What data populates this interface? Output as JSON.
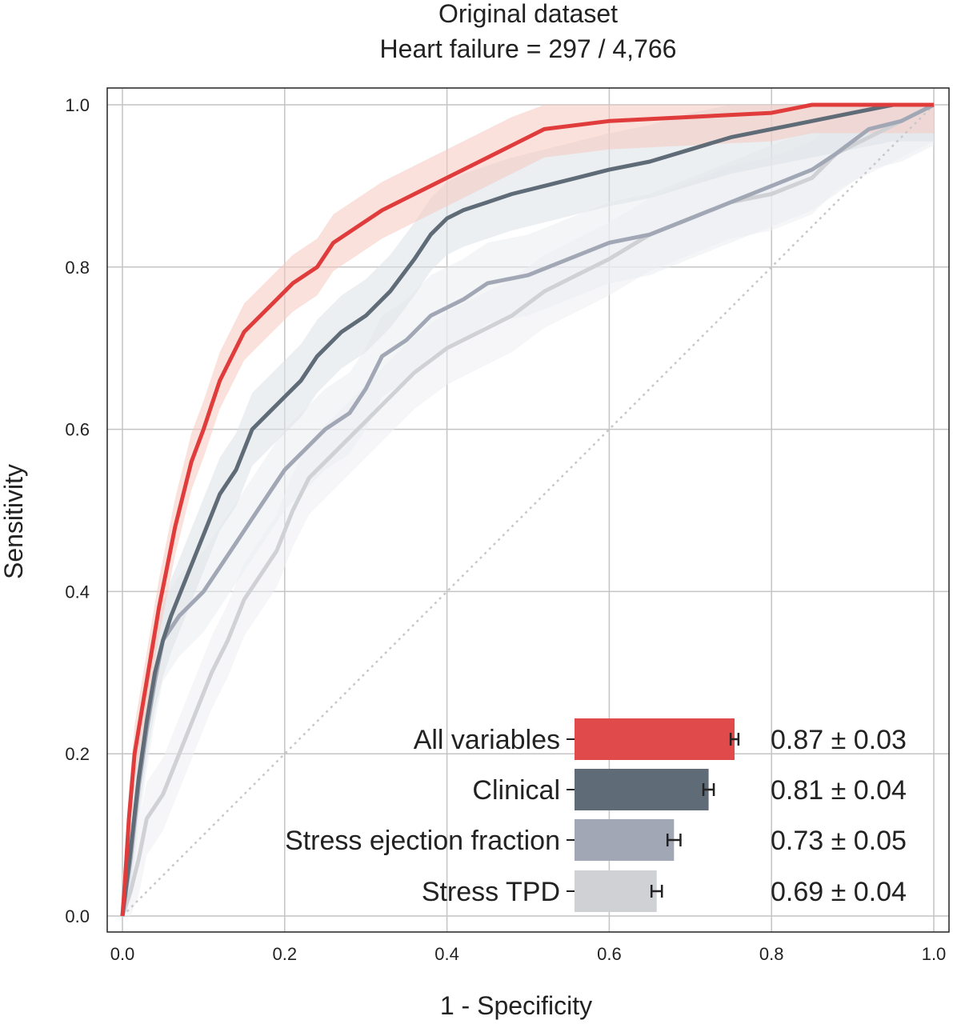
{
  "chart_data": {
    "type": "line",
    "title": "Original dataset",
    "subtitle": "Heart failure = 297 / 4,766",
    "xlabel": "1 - Specificity",
    "ylabel": "Sensitivity",
    "xlim": [
      0,
      1
    ],
    "ylim": [
      0,
      1
    ],
    "x_ticks": [
      "0.0",
      "0.2",
      "0.4",
      "0.6",
      "0.8",
      "1.0"
    ],
    "y_ticks": [
      "0.0",
      "0.2",
      "0.4",
      "0.6",
      "0.8",
      "1.0"
    ],
    "grid": true,
    "diagonal_reference": true,
    "series": [
      {
        "name": "All variables",
        "color": "#e03c3c",
        "band_color": "#f6c9c0",
        "auc_label": "0.87 ± 0.03",
        "auc": 0.87,
        "auc_err": 0.03,
        "points": [
          [
            0,
            0
          ],
          [
            0.003,
            0.04
          ],
          [
            0.008,
            0.12
          ],
          [
            0.015,
            0.2
          ],
          [
            0.025,
            0.26
          ],
          [
            0.035,
            0.32
          ],
          [
            0.045,
            0.38
          ],
          [
            0.055,
            0.43
          ],
          [
            0.065,
            0.48
          ],
          [
            0.075,
            0.52
          ],
          [
            0.085,
            0.56
          ],
          [
            0.1,
            0.6
          ],
          [
            0.11,
            0.63
          ],
          [
            0.12,
            0.66
          ],
          [
            0.135,
            0.69
          ],
          [
            0.15,
            0.72
          ],
          [
            0.17,
            0.74
          ],
          [
            0.19,
            0.76
          ],
          [
            0.21,
            0.78
          ],
          [
            0.24,
            0.8
          ],
          [
            0.26,
            0.83
          ],
          [
            0.29,
            0.85
          ],
          [
            0.32,
            0.87
          ],
          [
            0.36,
            0.89
          ],
          [
            0.4,
            0.91
          ],
          [
            0.44,
            0.93
          ],
          [
            0.48,
            0.95
          ],
          [
            0.52,
            0.97
          ],
          [
            0.6,
            0.98
          ],
          [
            0.7,
            0.985
          ],
          [
            0.8,
            0.99
          ],
          [
            0.85,
            1.0
          ],
          [
            1.0,
            1.0
          ]
        ]
      },
      {
        "name": "Clinical",
        "color": "#5f6b76",
        "band_color": "#dde2e8",
        "auc_label": "0.81 ± 0.04",
        "auc": 0.81,
        "auc_err": 0.04,
        "points": [
          [
            0,
            0
          ],
          [
            0.01,
            0.08
          ],
          [
            0.02,
            0.17
          ],
          [
            0.03,
            0.24
          ],
          [
            0.04,
            0.3
          ],
          [
            0.05,
            0.34
          ],
          [
            0.06,
            0.37
          ],
          [
            0.08,
            0.42
          ],
          [
            0.1,
            0.47
          ],
          [
            0.12,
            0.52
          ],
          [
            0.14,
            0.55
          ],
          [
            0.16,
            0.6
          ],
          [
            0.18,
            0.62
          ],
          [
            0.2,
            0.64
          ],
          [
            0.22,
            0.66
          ],
          [
            0.24,
            0.69
          ],
          [
            0.27,
            0.72
          ],
          [
            0.3,
            0.74
          ],
          [
            0.33,
            0.77
          ],
          [
            0.36,
            0.81
          ],
          [
            0.38,
            0.84
          ],
          [
            0.4,
            0.86
          ],
          [
            0.42,
            0.87
          ],
          [
            0.45,
            0.88
          ],
          [
            0.48,
            0.89
          ],
          [
            0.52,
            0.9
          ],
          [
            0.56,
            0.91
          ],
          [
            0.6,
            0.92
          ],
          [
            0.65,
            0.93
          ],
          [
            0.7,
            0.945
          ],
          [
            0.75,
            0.96
          ],
          [
            0.8,
            0.97
          ],
          [
            0.85,
            0.98
          ],
          [
            0.9,
            0.99
          ],
          [
            0.95,
            1.0
          ],
          [
            1.0,
            1.0
          ]
        ]
      },
      {
        "name": "Stress ejection fraction",
        "color": "#a1a7b4",
        "band_color": "#eaedf1",
        "auc_label": "0.73 ± 0.05",
        "auc": 0.73,
        "auc_err": 0.05,
        "points": [
          [
            0,
            0
          ],
          [
            0.01,
            0.07
          ],
          [
            0.02,
            0.16
          ],
          [
            0.03,
            0.23
          ],
          [
            0.04,
            0.29
          ],
          [
            0.05,
            0.34
          ],
          [
            0.07,
            0.37
          ],
          [
            0.1,
            0.4
          ],
          [
            0.12,
            0.43
          ],
          [
            0.14,
            0.46
          ],
          [
            0.16,
            0.49
          ],
          [
            0.18,
            0.52
          ],
          [
            0.2,
            0.55
          ],
          [
            0.22,
            0.57
          ],
          [
            0.25,
            0.6
          ],
          [
            0.28,
            0.62
          ],
          [
            0.3,
            0.65
          ],
          [
            0.32,
            0.69
          ],
          [
            0.35,
            0.71
          ],
          [
            0.38,
            0.74
          ],
          [
            0.42,
            0.76
          ],
          [
            0.45,
            0.78
          ],
          [
            0.5,
            0.79
          ],
          [
            0.55,
            0.81
          ],
          [
            0.6,
            0.83
          ],
          [
            0.65,
            0.84
          ],
          [
            0.7,
            0.86
          ],
          [
            0.75,
            0.88
          ],
          [
            0.8,
            0.9
          ],
          [
            0.85,
            0.92
          ],
          [
            0.88,
            0.94
          ],
          [
            0.92,
            0.97
          ],
          [
            0.96,
            0.98
          ],
          [
            1.0,
            1.0
          ]
        ]
      },
      {
        "name": "Stress TPD",
        "color": "#cfd1d5",
        "band_color": "#eeeff2",
        "auc_label": "0.69 ± 0.04",
        "auc": 0.69,
        "auc_err": 0.04,
        "points": [
          [
            0,
            0
          ],
          [
            0.01,
            0.03
          ],
          [
            0.02,
            0.07
          ],
          [
            0.03,
            0.12
          ],
          [
            0.05,
            0.15
          ],
          [
            0.07,
            0.2
          ],
          [
            0.09,
            0.25
          ],
          [
            0.11,
            0.3
          ],
          [
            0.13,
            0.34
          ],
          [
            0.15,
            0.39
          ],
          [
            0.17,
            0.42
          ],
          [
            0.19,
            0.45
          ],
          [
            0.21,
            0.5
          ],
          [
            0.23,
            0.54
          ],
          [
            0.25,
            0.56
          ],
          [
            0.27,
            0.58
          ],
          [
            0.3,
            0.61
          ],
          [
            0.33,
            0.64
          ],
          [
            0.36,
            0.67
          ],
          [
            0.4,
            0.7
          ],
          [
            0.44,
            0.72
          ],
          [
            0.48,
            0.74
          ],
          [
            0.52,
            0.77
          ],
          [
            0.56,
            0.79
          ],
          [
            0.6,
            0.81
          ],
          [
            0.65,
            0.84
          ],
          [
            0.7,
            0.86
          ],
          [
            0.75,
            0.88
          ],
          [
            0.8,
            0.89
          ],
          [
            0.85,
            0.91
          ],
          [
            0.88,
            0.94
          ],
          [
            0.92,
            0.96
          ],
          [
            0.96,
            0.98
          ],
          [
            1.0,
            1.0
          ]
        ]
      }
    ],
    "inset_legend": {
      "type": "bar",
      "placement": "bottom-right",
      "categories": [
        "All variables",
        "Clinical",
        "Stress ejection fraction",
        "Stress TPD"
      ],
      "values": [
        0.87,
        0.81,
        0.73,
        0.69
      ],
      "errors": [
        0.03,
        0.04,
        0.05,
        0.04
      ],
      "labels": [
        "0.87 ± 0.03",
        "0.81 ± 0.04",
        "0.73 ± 0.05",
        "0.69 ± 0.04"
      ]
    }
  }
}
